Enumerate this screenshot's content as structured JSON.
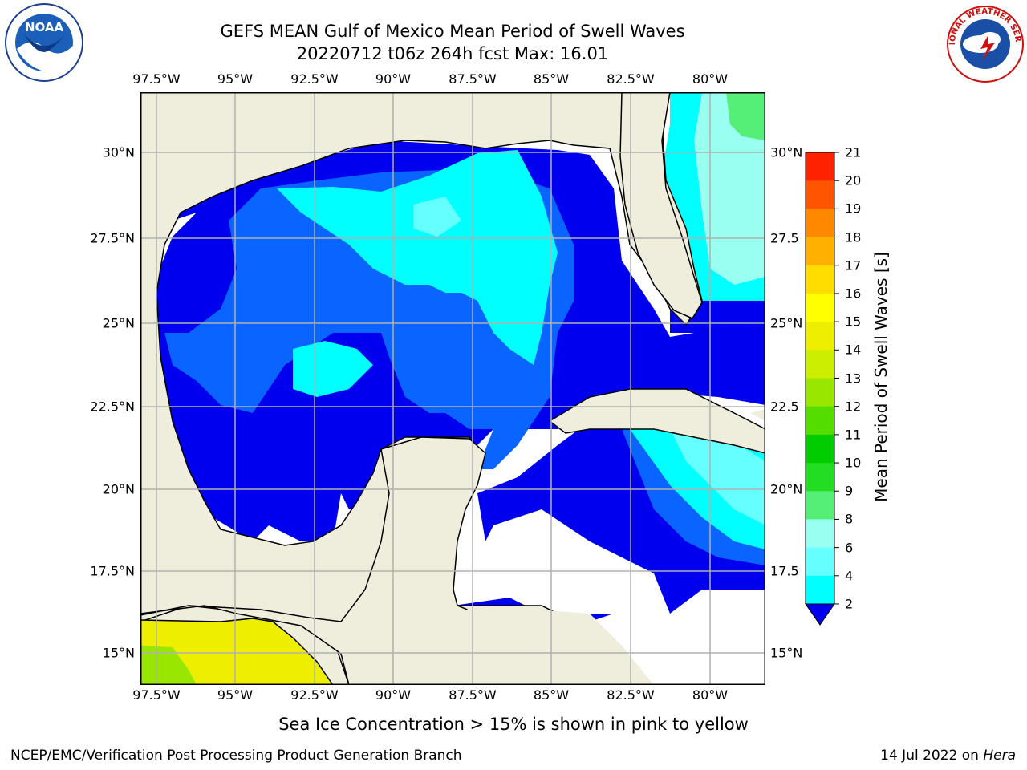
{
  "header": {
    "title_line1": "GEFS MEAN Gulf of Mexico Mean Period of Swell Waves",
    "title_line2": "20220712 t06z 264h fcst   Max: 16.01"
  },
  "map": {
    "lon_ticks": [
      "97.5°W",
      "95°W",
      "92.5°W",
      "90°W",
      "87.5°W",
      "85°W",
      "82.5°W",
      "80°W"
    ],
    "lat_ticks_left": [
      "30°N",
      "27.5°N",
      "25°N",
      "22.5°N",
      "20°N",
      "17.5°N",
      "15°N"
    ],
    "lat_ticks_right": [
      "30°N",
      "27.5",
      "25°N",
      "22.5",
      "20°N",
      "17.5",
      "15°N"
    ],
    "colors": {
      "land": "#efeedd",
      "ocean_white": "#ffffff",
      "grid": "#b0b0b0"
    }
  },
  "colorbar": {
    "label": "Mean Period of Swell Waves [s]",
    "ticks": [
      "2",
      "4",
      "6",
      "8",
      "9",
      "10",
      "11",
      "12",
      "13",
      "14",
      "15",
      "16",
      "17",
      "18",
      "19",
      "20",
      "21"
    ],
    "colors": [
      "#0a64ff",
      "#00d2ff",
      "#00ffff",
      "#66ffff",
      "#99fff0",
      "#55ee77",
      "#22dd22",
      "#00cc00",
      "#55dd00",
      "#99e600",
      "#ccee00",
      "#eeee00",
      "#ffff00",
      "#ffdd00",
      "#ffb000",
      "#ff8800",
      "#ff5500",
      "#ff2200"
    ],
    "under_color": "#0000ee"
  },
  "caption": "Sea Ice Concentration > 15% is shown in pink to yellow",
  "footer": {
    "left": "NCEP/EMC/Verification Post Processing Product Generation Branch",
    "right_prefix": "14 Jul 2022 on ",
    "right_host": "Hera"
  },
  "logos": {
    "left": "NOAA",
    "right": "NATIONAL WEATHER SERVICE"
  }
}
